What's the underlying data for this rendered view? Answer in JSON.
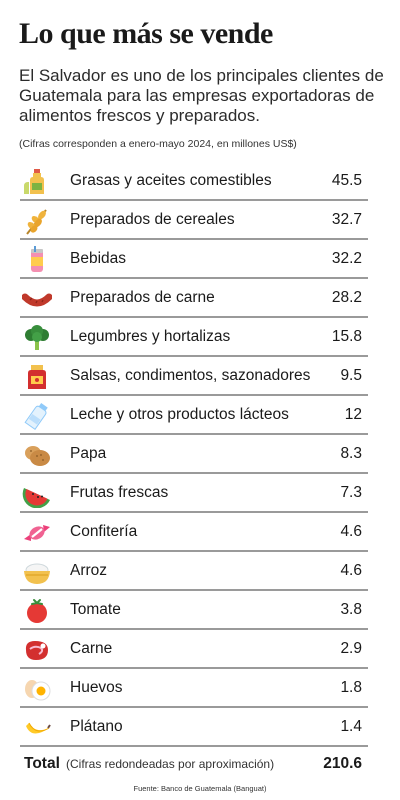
{
  "title": "Lo que más se vende",
  "intro": "El Salvador es uno de los principales clientes de Guatemala para las empresas exportadoras de alimentos frescos y preparados.",
  "unit_note": "(Cifras corresponden a enero-mayo 2024, en millones US$)",
  "chart_data": {
    "type": "table",
    "categories": [
      "Grasas y aceites comestibles",
      "Preparados de cereales",
      "Bebidas",
      "Preparados de carne",
      "Legumbres y hortalizas",
      "Salsas, condimentos, sazonadores",
      "Leche y otros productos lácteos",
      "Papa",
      "Frutas frescas",
      "Confitería",
      "Arroz",
      "Tomate",
      "Carne",
      "Huevos",
      "Plátano"
    ],
    "values": [
      45.5,
      32.7,
      32.2,
      28.2,
      15.8,
      9.5,
      12,
      8.3,
      7.3,
      4.6,
      4.6,
      3.8,
      2.9,
      1.8,
      1.4
    ],
    "value_labels": [
      "45.5",
      "32.7",
      "32.2",
      "28.2",
      "15.8",
      "9.5",
      "12",
      "8.3",
      "7.3",
      "4.6",
      "4.6",
      "3.8",
      "2.9",
      "1.8",
      "1.4"
    ],
    "icons": [
      "oil-bottle-icon",
      "wheat-icon",
      "drink-can-icon",
      "sausage-icon",
      "broccoli-icon",
      "sauce-jar-icon",
      "milk-bottle-icon",
      "potato-icon",
      "watermelon-icon",
      "candy-icon",
      "rice-bowl-icon",
      "tomato-icon",
      "meat-icon",
      "eggs-icon",
      "banana-icon"
    ],
    "total": {
      "label": "Total",
      "note": "(Cifras redondeadas por aproximación)",
      "value": "210.6"
    }
  },
  "source": "Fuente: Banco de Guatemala (Banguat)"
}
